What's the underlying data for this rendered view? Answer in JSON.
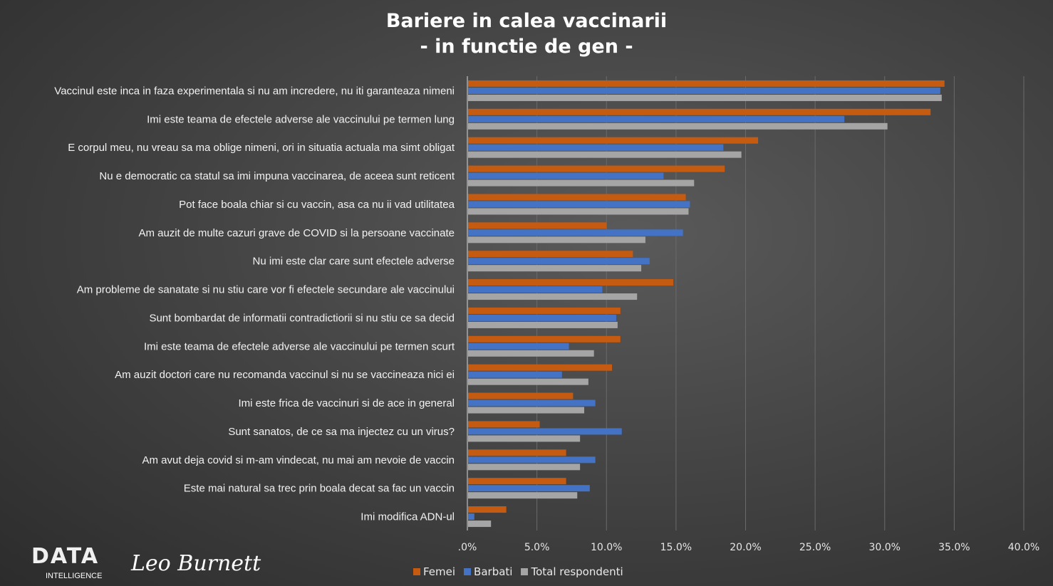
{
  "chart_data": {
    "type": "bar",
    "orientation": "horizontal",
    "title": "Bariere in calea vaccinarii",
    "subtitle": "- in functie de gen -",
    "categories": [
      "Vaccinul este inca in faza experimentala si nu am incredere, nu iti garanteaza nimeni",
      "Imi este teama de efectele adverse ale vaccinului pe termen lung",
      "E corpul meu, nu vreau sa ma oblige nimeni, ori in situatia actuala ma simt obligat",
      "Nu e democratic ca statul sa imi impuna vaccinarea, de aceea sunt reticent",
      "Pot face boala chiar si cu vaccin, asa ca nu ii vad utilitatea",
      "Am auzit de multe cazuri grave de COVID si la persoane vaccinate",
      "Nu imi este clar care sunt efectele adverse",
      "Am probleme de sanatate si nu stiu care vor fi efectele secundare ale vaccinului",
      "Sunt bombardat de informatii contradictiorii si nu stiu ce sa decid",
      "Imi este teama de efectele adverse ale vaccinului pe termen scurt",
      "Am auzit doctori care nu recomanda vaccinul si nu se vaccineaza nici ei",
      "Imi este frica de vaccinuri si de ace in general",
      "Sunt sanatos, de ce sa ma injectez cu un virus?",
      "Am avut deja covid si m-am vindecat, nu mai am nevoie de vaccin",
      "Este mai natural sa trec prin boala decat sa fac un vaccin",
      "Imi modifica ADN-ul"
    ],
    "series": [
      {
        "name": "Femei",
        "color": "#c55a11",
        "values": [
          34.3,
          33.3,
          20.9,
          18.5,
          15.7,
          10.0,
          11.9,
          14.8,
          11.0,
          11.0,
          10.4,
          7.6,
          5.2,
          7.1,
          7.1,
          2.8
        ]
      },
      {
        "name": "Barbati",
        "color": "#4472c4",
        "values": [
          34.0,
          27.1,
          18.4,
          14.1,
          16.0,
          15.5,
          13.1,
          9.7,
          10.7,
          7.3,
          6.8,
          9.2,
          11.1,
          9.2,
          8.8,
          0.5
        ]
      },
      {
        "name": "Total respondenti",
        "color": "#a5a5a5",
        "values": [
          34.1,
          30.2,
          19.7,
          16.3,
          15.9,
          12.8,
          12.5,
          12.2,
          10.8,
          9.1,
          8.7,
          8.4,
          8.1,
          8.1,
          7.9,
          1.7
        ]
      }
    ],
    "xlim": [
      0,
      40
    ],
    "xticks": [
      ".0%",
      "5.0%",
      "10.0%",
      "15.0%",
      "20.0%",
      "25.0%",
      "30.0%",
      "35.0%",
      "40.0%"
    ],
    "grid": true,
    "legend": "bottom"
  },
  "logo": {
    "text": "DATA",
    "subtext": "INTELLIGENCE",
    "signature": "Leo Burnett"
  }
}
